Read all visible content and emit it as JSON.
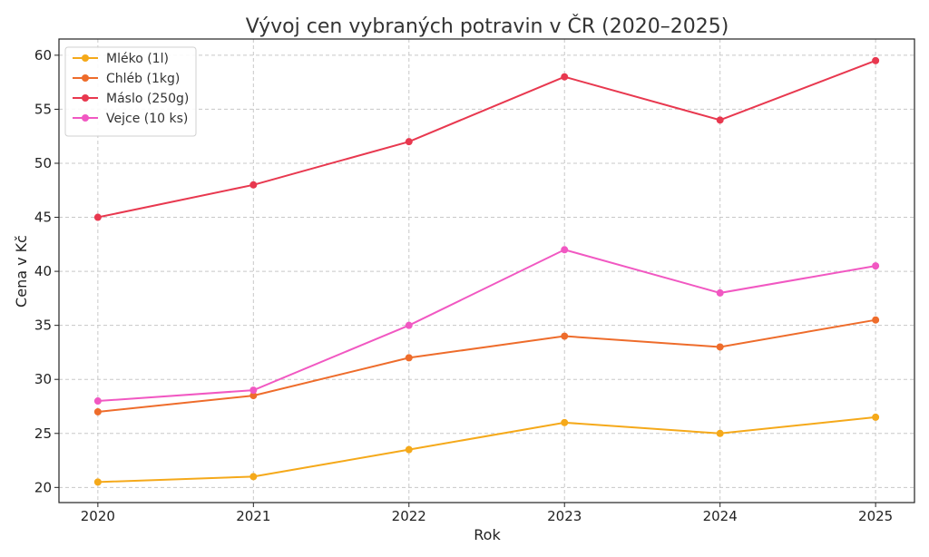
{
  "chart_data": {
    "type": "line",
    "title": "Vývoj cen vybraných potravin v ČR (2020–2025)",
    "xlabel": "Rok",
    "ylabel": "Cena v Kč",
    "x": [
      2020,
      2021,
      2022,
      2023,
      2024,
      2025
    ],
    "x_tick_labels": [
      "2020",
      "2021",
      "2022",
      "2023",
      "2024",
      "2025"
    ],
    "y_ticks": [
      20,
      25,
      30,
      35,
      40,
      45,
      50,
      55,
      60
    ],
    "y_tick_labels": [
      "20",
      "25",
      "30",
      "35",
      "40",
      "45",
      "50",
      "55",
      "60"
    ],
    "xlim": [
      2019.75,
      2025.25
    ],
    "ylim": [
      18.6,
      61.5
    ],
    "grid": true,
    "legend_position": "top-left",
    "series": [
      {
        "name": "Mléko (1l)",
        "color": "#f5a91a",
        "values": [
          20.5,
          21,
          23.5,
          26,
          25,
          26.5
        ]
      },
      {
        "name": "Chléb (1kg)",
        "color": "#ee6c2b",
        "values": [
          27,
          28.5,
          32,
          34,
          33,
          35.5
        ]
      },
      {
        "name": "Máslo (250g)",
        "color": "#e8384f",
        "values": [
          45,
          48,
          52,
          58,
          54,
          59.5
        ]
      },
      {
        "name": "Vejce (10 ks)",
        "color": "#f158c2",
        "values": [
          28,
          29,
          35,
          42,
          38,
          40.5
        ]
      }
    ]
  }
}
